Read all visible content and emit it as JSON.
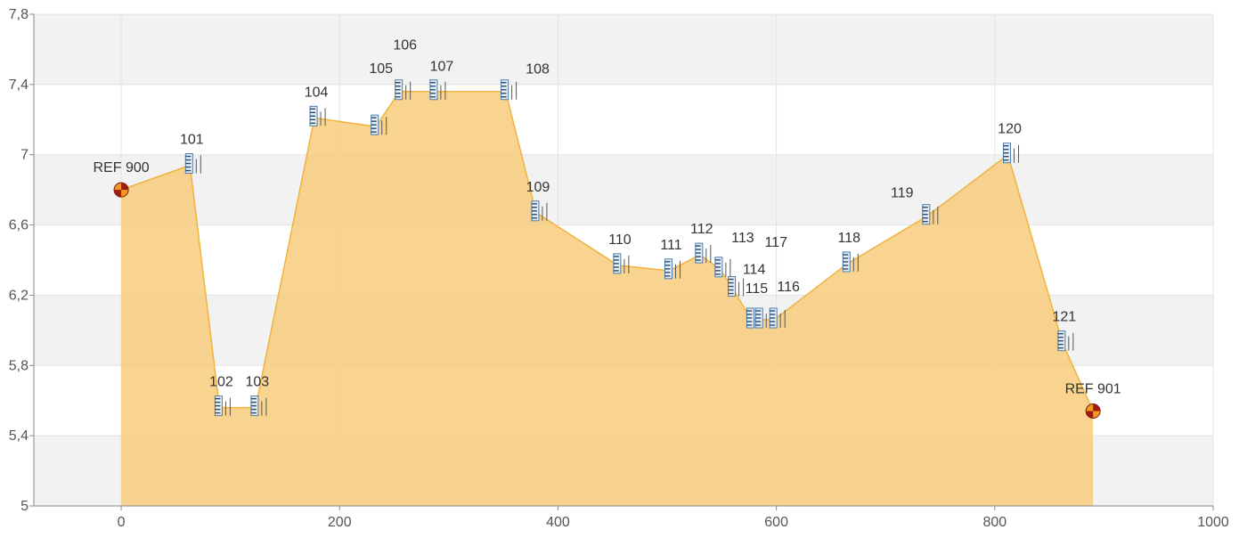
{
  "chart_data": {
    "type": "area",
    "title": "",
    "xlabel": "",
    "ylabel": "",
    "xlim": [
      -80,
      1000
    ],
    "ylim": [
      5,
      7.8
    ],
    "x_ticks": [
      0,
      200,
      400,
      600,
      800,
      1000
    ],
    "x_tick_labels": [
      "0",
      "200",
      "400",
      "600",
      "800",
      "1000"
    ],
    "y_ticks": [
      5,
      5.4,
      5.8,
      6.2,
      6.6,
      7,
      7.4,
      7.8
    ],
    "y_tick_labels": [
      "5",
      "5,4",
      "5,8",
      "6,2",
      "6,6",
      "7",
      "7,4",
      "7,8"
    ],
    "grid": true,
    "colors": {
      "fill": "#f8cd7c",
      "line": "#f0b33e",
      "band": "#f2f2f2",
      "grid": "#e3e3e3",
      "ref_marker_a": "#f49a1a",
      "ref_marker_b": "#9c1c12",
      "level_icon": "#4a7aa8"
    },
    "points": [
      {
        "label": "REF 900",
        "x": 0,
        "y": 6.8,
        "kind": "reference"
      },
      {
        "label": "101",
        "x": 63,
        "y": 6.94,
        "kind": "level"
      },
      {
        "label": "102",
        "x": 90,
        "y": 5.56,
        "kind": "level"
      },
      {
        "label": "103",
        "x": 123,
        "y": 5.56,
        "kind": "level"
      },
      {
        "label": "104",
        "x": 177,
        "y": 7.21,
        "kind": "level"
      },
      {
        "label": "105",
        "x": 233,
        "y": 7.16,
        "kind": "level"
      },
      {
        "label": "106",
        "x": 255,
        "y": 7.36,
        "kind": "level"
      },
      {
        "label": "107",
        "x": 287,
        "y": 7.36,
        "kind": "level"
      },
      {
        "label": "108",
        "x": 352,
        "y": 7.36,
        "kind": "level"
      },
      {
        "label": "109",
        "x": 380,
        "y": 6.67,
        "kind": "level"
      },
      {
        "label": "110",
        "x": 455,
        "y": 6.37,
        "kind": "level"
      },
      {
        "label": "111",
        "x": 502,
        "y": 6.34,
        "kind": "level"
      },
      {
        "label": "112",
        "x": 530,
        "y": 6.43,
        "kind": "level"
      },
      {
        "label": "113",
        "x": 548,
        "y": 6.35,
        "kind": "level"
      },
      {
        "label": "114",
        "x": 560,
        "y": 6.24,
        "kind": "level"
      },
      {
        "label": "115",
        "x": 577,
        "y": 6.06,
        "kind": "level"
      },
      {
        "label": "117",
        "x": 585,
        "y": 6.06,
        "kind": "level"
      },
      {
        "label": "116",
        "x": 598,
        "y": 6.06,
        "kind": "level"
      },
      {
        "label": "118",
        "x": 665,
        "y": 6.38,
        "kind": "level"
      },
      {
        "label": "119",
        "x": 738,
        "y": 6.65,
        "kind": "level"
      },
      {
        "label": "120",
        "x": 812,
        "y": 7.0,
        "kind": "level"
      },
      {
        "label": "121",
        "x": 862,
        "y": 5.93,
        "kind": "level"
      },
      {
        "label": "REF 901",
        "x": 890,
        "y": 5.54,
        "kind": "reference"
      }
    ]
  }
}
